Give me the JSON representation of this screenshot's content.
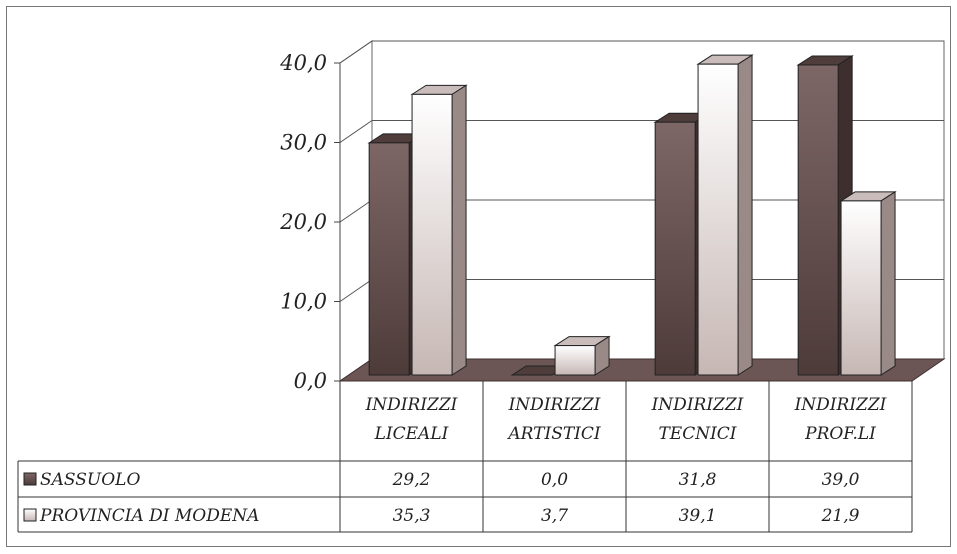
{
  "chart_data": {
    "type": "bar",
    "categories": [
      [
        "INDIRIZZI",
        "LICEALI"
      ],
      [
        "INDIRIZZI",
        "ARTISTICI"
      ],
      [
        "INDIRIZZI",
        "TECNICI"
      ],
      [
        "INDIRIZZI",
        "PROF.LI"
      ]
    ],
    "series": [
      {
        "name": "SASSUOLO",
        "values": [
          29.2,
          0.0,
          31.8,
          39.0
        ],
        "labels": [
          "29,2",
          "0,0",
          "31,8",
          "39,0"
        ]
      },
      {
        "name": "PROVINCIA DI MODENA",
        "values": [
          35.3,
          3.7,
          39.1,
          21.9
        ],
        "labels": [
          "35,3",
          "3,7",
          "39,1",
          "21,9"
        ]
      }
    ],
    "yticks": [
      "0,0",
      "10,0",
      "20,0",
      "30,0",
      "40,0"
    ],
    "ylim": [
      0,
      40
    ],
    "grid": true,
    "three_d": true,
    "legend": "data-table"
  }
}
